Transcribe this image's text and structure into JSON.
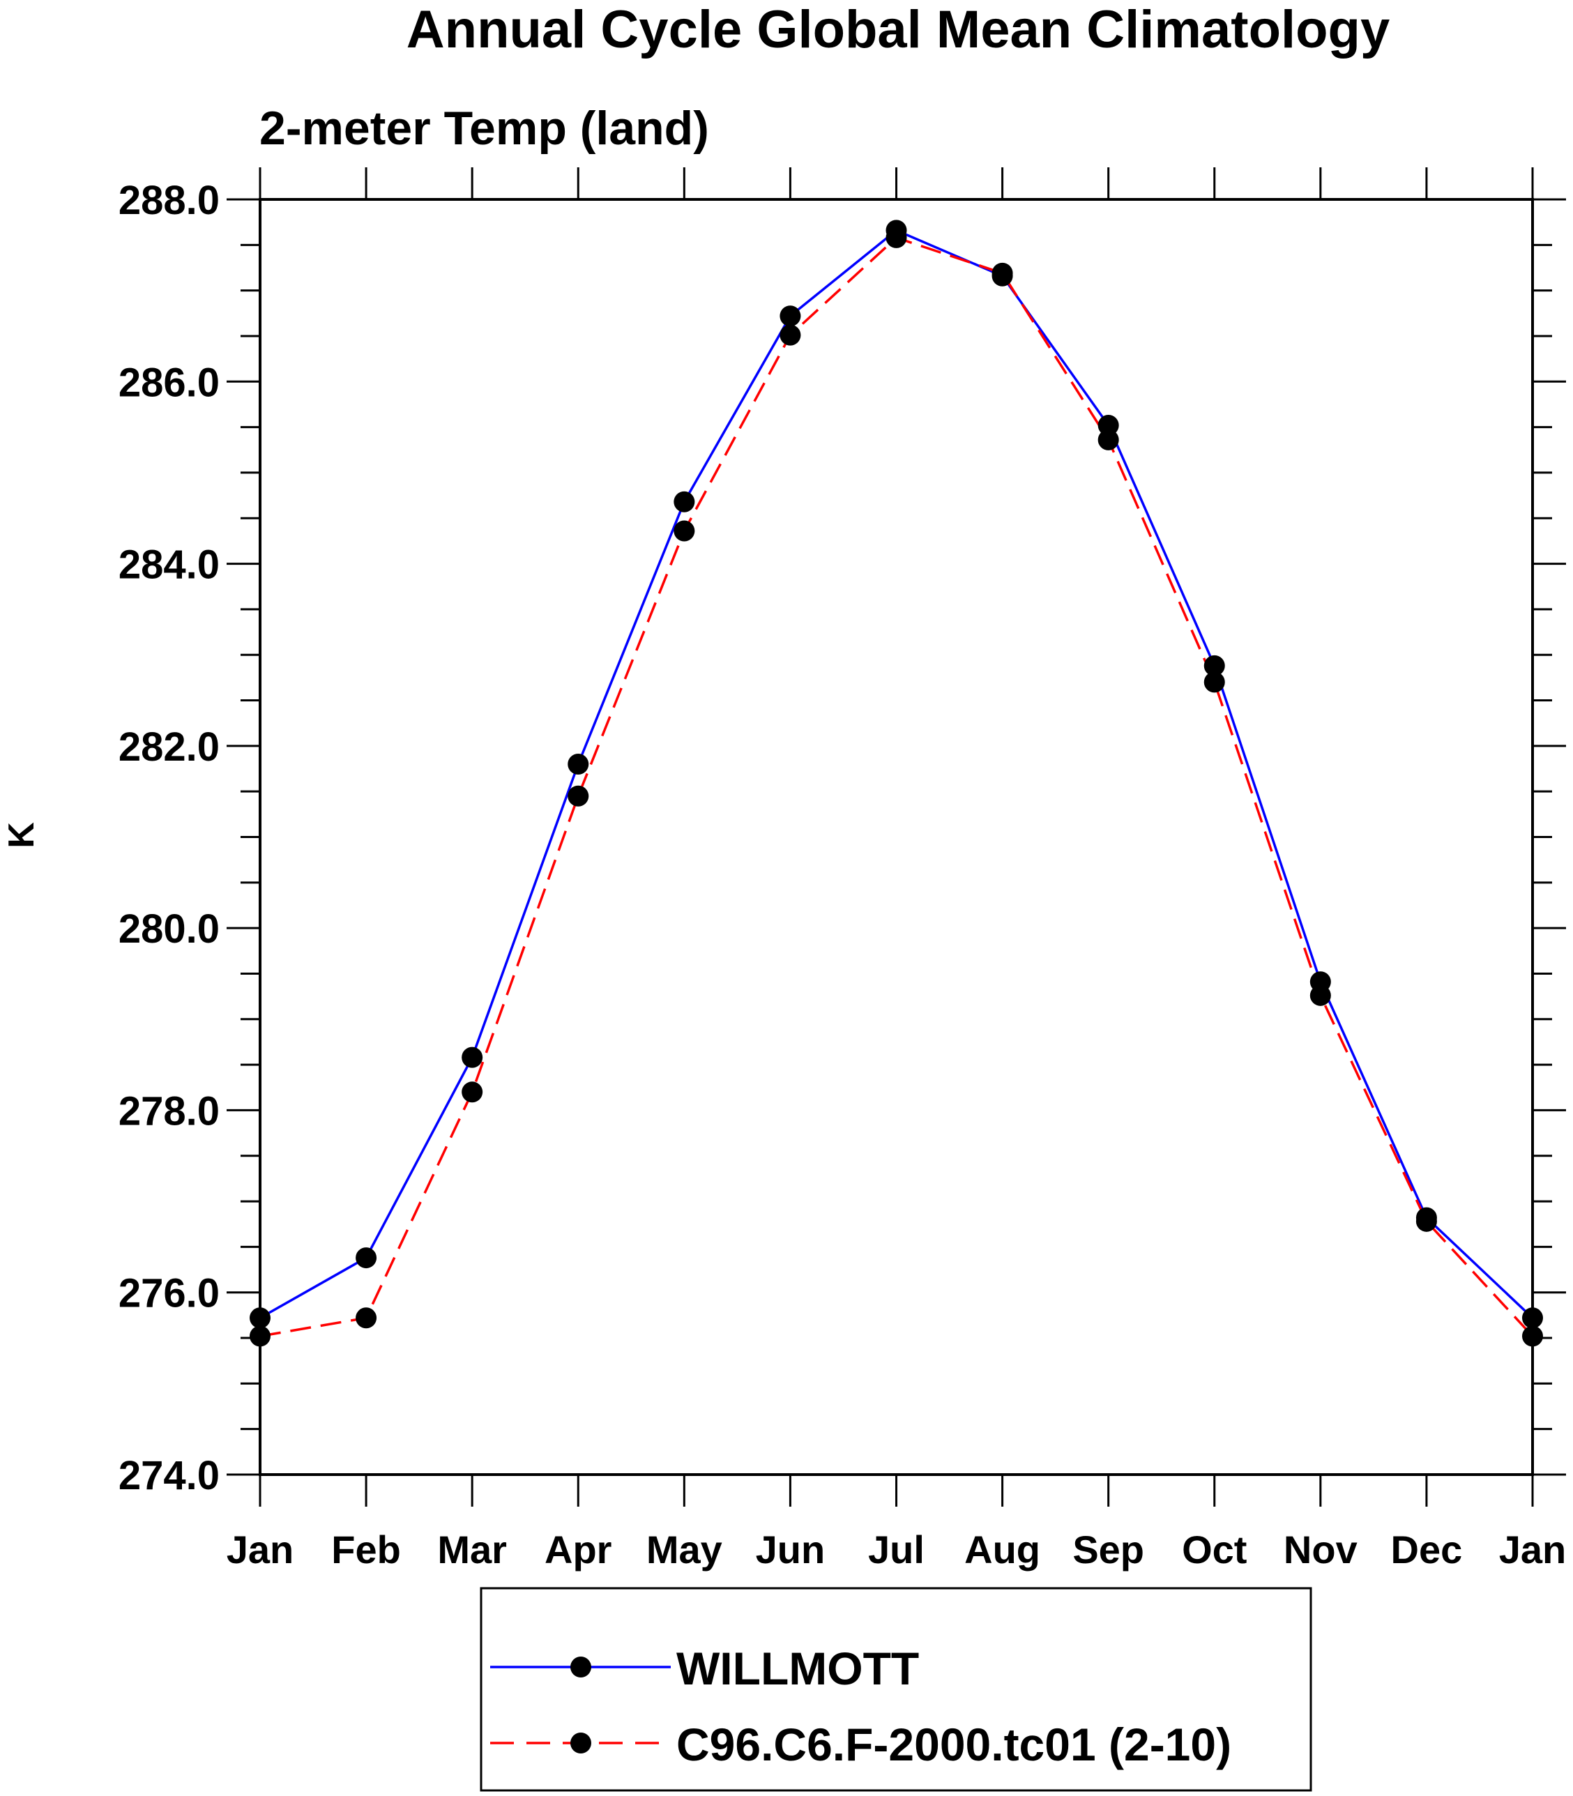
{
  "chart_data": {
    "type": "line",
    "title": "Annual Cycle Global Mean Climatology",
    "subtitle": "2-meter Temp (land)",
    "xlabel": "",
    "ylabel": "K",
    "categories": [
      "Jan",
      "Feb",
      "Mar",
      "Apr",
      "May",
      "Jun",
      "Jul",
      "Aug",
      "Sep",
      "Oct",
      "Nov",
      "Dec",
      "Jan"
    ],
    "ylim": [
      274.0,
      288.0
    ],
    "y_ticks": [
      "274.0",
      "276.0",
      "278.0",
      "280.0",
      "282.0",
      "284.0",
      "286.0",
      "288.0"
    ],
    "y_minor_step": 0.5,
    "grid": false,
    "legend_position": "bottom-center",
    "series": [
      {
        "name": "WILLMOTT",
        "color": "#0000ff",
        "line_style": "solid",
        "marker": "circle",
        "values": [
          275.72,
          276.38,
          278.58,
          281.8,
          284.68,
          286.72,
          287.66,
          287.16,
          285.52,
          282.88,
          279.41,
          276.82,
          275.72
        ]
      },
      {
        "name": "C96.C6.F-2000.tc01 (2-10)",
        "color": "#ff0000",
        "line_style": "dashed",
        "marker": "circle",
        "values": [
          275.52,
          275.72,
          278.2,
          281.45,
          284.36,
          286.51,
          287.58,
          287.19,
          285.36,
          282.7,
          279.26,
          276.78,
          275.52
        ]
      }
    ]
  }
}
